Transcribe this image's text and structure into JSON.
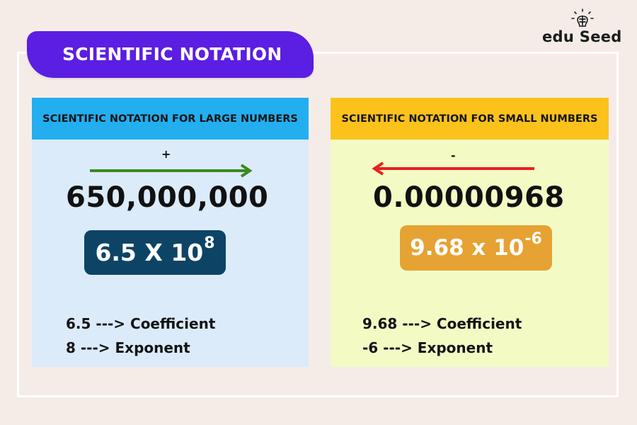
{
  "title": "SCIENTIFIC NOTATION",
  "logo": {
    "text_left": "edu",
    "text_s": "S",
    "text_right": "eed",
    "icon": "lightbulb-brain-icon"
  },
  "colors": {
    "title_bg": "#5b1ee3",
    "left_header": "#23aef0",
    "left_panel": "#dcebf9",
    "left_pill": "#0d4466",
    "right_header": "#fbc21c",
    "right_panel": "#f3fac4",
    "right_pill": "#e6a232",
    "right_arrow": "#e8201c",
    "left_arrow": "#3a8a1e"
  },
  "large": {
    "header": "SCIENTIFIC NOTATION FOR LARGE NUMBERS",
    "sign": "+",
    "arrow_direction": "right",
    "number": "650,000,000",
    "base": "6.5 X 10",
    "exponent": "8",
    "line1": "6.5 ---> Coefficient",
    "line2": "8 ---> Exponent"
  },
  "small": {
    "header": "SCIENTIFIC NOTATION FOR SMALL NUMBERS",
    "sign": "-",
    "arrow_direction": "left",
    "number": "0.00000968",
    "base": "9.68 x 10",
    "exponent": "-6",
    "line1": "9.68 ---> Coefficient",
    "line2": "-6 ---> Exponent"
  }
}
